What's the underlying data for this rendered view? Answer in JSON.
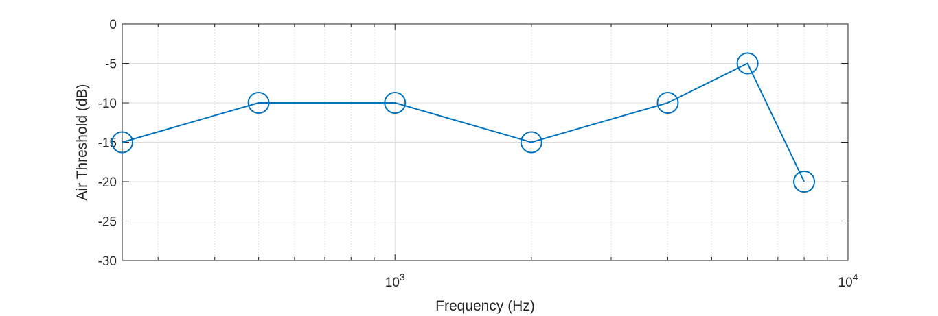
{
  "chart_data": {
    "type": "line",
    "title": "",
    "xlabel": "Frequency (Hz)",
    "ylabel": "Air Threshold (dB)",
    "xscale": "log",
    "xlim": [
      250,
      10000
    ],
    "ylim": [
      -30,
      0
    ],
    "grid": true,
    "minor_grid_x": true,
    "x_tick_labels": [
      {
        "base": "10",
        "exp": "3",
        "value": 1000
      },
      {
        "base": "10",
        "exp": "4",
        "value": 10000
      }
    ],
    "y_ticks": [
      0,
      -5,
      -10,
      -15,
      -20,
      -25,
      -30
    ],
    "series": [
      {
        "color": "#0072BD",
        "marker": "circle",
        "x": [
          250,
          500,
          1000,
          2000,
          4000,
          6000,
          8000
        ],
        "y": [
          -15,
          -10,
          -10,
          -15,
          -10,
          -5,
          -20
        ]
      }
    ]
  }
}
